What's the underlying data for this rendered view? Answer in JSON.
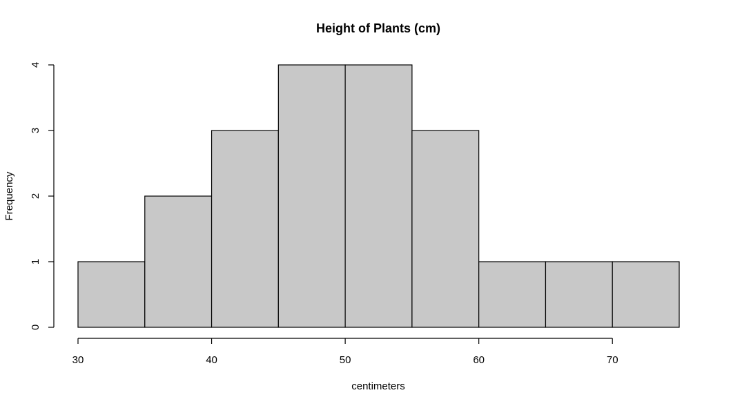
{
  "chart_data": {
    "type": "bar",
    "title": "Height of Plants (cm)",
    "xlabel": "centimeters",
    "ylabel": "Frequency",
    "bins": [
      {
        "start": 30,
        "end": 35,
        "count": 1
      },
      {
        "start": 35,
        "end": 40,
        "count": 2
      },
      {
        "start": 40,
        "end": 45,
        "count": 3
      },
      {
        "start": 45,
        "end": 50,
        "count": 4
      },
      {
        "start": 50,
        "end": 55,
        "count": 4
      },
      {
        "start": 55,
        "end": 60,
        "count": 3
      },
      {
        "start": 60,
        "end": 65,
        "count": 1
      },
      {
        "start": 65,
        "end": 70,
        "count": 1
      },
      {
        "start": 70,
        "end": 75,
        "count": 1
      }
    ],
    "xticks": [
      30,
      40,
      50,
      60,
      70
    ],
    "yticks": [
      0,
      1,
      2,
      3,
      4
    ],
    "xlim": [
      30,
      75
    ],
    "ylim": [
      0,
      4
    ],
    "grid": false,
    "bar_color": "#c8c8c8",
    "edge_color": "#000000"
  }
}
